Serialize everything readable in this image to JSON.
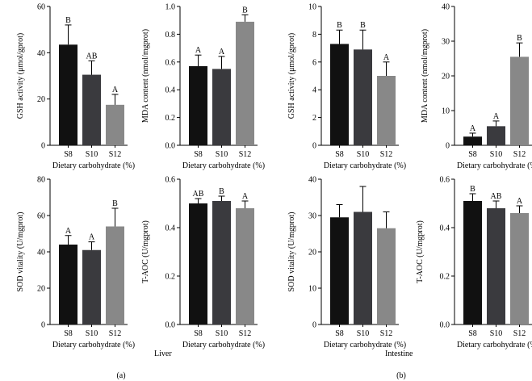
{
  "figure": {
    "group_labels": [
      "Liver",
      "Intestine"
    ],
    "panel_labels": [
      "(a)",
      "(b)"
    ],
    "bar_colors": [
      "#111111",
      "#3a3a3e",
      "#888888"
    ]
  },
  "chart_data": [
    {
      "type": "bar",
      "group": "Liver",
      "position": "top-left",
      "title": "",
      "xlabel": "Dietary carbohydrate (%)",
      "ylabel": "GSH activity (μmol/gprot)",
      "categories": [
        "S8",
        "S10",
        "S12"
      ],
      "values": [
        43.5,
        30.5,
        17.5
      ],
      "errors": [
        8.5,
        6.0,
        4.5
      ],
      "significance": [
        "B",
        "AB",
        "A"
      ],
      "ylim": [
        0,
        60
      ],
      "yticks": [
        0,
        20,
        40,
        60
      ],
      "tick_labels": [
        "0",
        "20",
        "40",
        "60"
      ]
    },
    {
      "type": "bar",
      "group": "Liver",
      "position": "top-right",
      "title": "",
      "xlabel": "Dietary carbohydrate (%)",
      "ylabel": "MDA content (nmol/mgprot)",
      "categories": [
        "S8",
        "S10",
        "S12"
      ],
      "values": [
        0.57,
        0.55,
        0.89
      ],
      "errors": [
        0.08,
        0.09,
        0.05
      ],
      "significance": [
        "A",
        "A",
        "B"
      ],
      "ylim": [
        0,
        1.0
      ],
      "yticks": [
        0,
        0.2,
        0.4,
        0.6,
        0.8,
        1.0
      ],
      "tick_labels": [
        "0.0",
        "0.2",
        "0.4",
        "0.6",
        "0.8",
        "1.0"
      ]
    },
    {
      "type": "bar",
      "group": "Liver",
      "position": "bottom-left",
      "title": "",
      "xlabel": "Dietary carbohydrate (%)",
      "ylabel": "SOD vitality (U/mgprot)",
      "categories": [
        "S8",
        "S10",
        "S12"
      ],
      "values": [
        44.0,
        41.0,
        54.0
      ],
      "errors": [
        5.0,
        4.5,
        10.0
      ],
      "significance": [
        "A",
        "A",
        "B"
      ],
      "ylim": [
        0,
        80
      ],
      "yticks": [
        0,
        20,
        40,
        60,
        80
      ],
      "tick_labels": [
        "0",
        "20",
        "40",
        "60",
        "80"
      ]
    },
    {
      "type": "bar",
      "group": "Liver",
      "position": "bottom-right",
      "title": "",
      "xlabel": "Dietary carbohydrate (%)",
      "ylabel": "T-AOC (U/mgprot)",
      "categories": [
        "S8",
        "S10",
        "S12"
      ],
      "values": [
        0.5,
        0.51,
        0.48
      ],
      "errors": [
        0.02,
        0.02,
        0.03
      ],
      "significance": [
        "AB",
        "B",
        "A"
      ],
      "ylim": [
        0,
        0.6
      ],
      "yticks": [
        0,
        0.2,
        0.4,
        0.6
      ],
      "tick_labels": [
        "0.0",
        "0.2",
        "0.4",
        "0.6"
      ]
    },
    {
      "type": "bar",
      "group": "Intestine",
      "position": "top-left",
      "title": "",
      "xlabel": "Dietary carbohydrate (%)",
      "ylabel": "GSH activity (μmol/gprot)",
      "categories": [
        "S8",
        "S10",
        "S12"
      ],
      "values": [
        7.3,
        6.9,
        5.0
      ],
      "errors": [
        1.0,
        1.4,
        1.0
      ],
      "significance": [
        "B",
        "B",
        "A"
      ],
      "ylim": [
        0,
        10
      ],
      "yticks": [
        0,
        2,
        4,
        6,
        8,
        10
      ],
      "tick_labels": [
        "0",
        "2",
        "4",
        "6",
        "8",
        "10"
      ]
    },
    {
      "type": "bar",
      "group": "Intestine",
      "position": "top-right",
      "title": "",
      "xlabel": "Dietary carbohydrate (%)",
      "ylabel": "MDA content (nmol/mgprot)",
      "categories": [
        "S8",
        "S10",
        "S12"
      ],
      "values": [
        2.5,
        5.5,
        25.5
      ],
      "errors": [
        1.0,
        1.5,
        4.0
      ],
      "significance": [
        "A",
        "A",
        "B"
      ],
      "ylim": [
        0,
        40
      ],
      "yticks": [
        0,
        10,
        20,
        30,
        40
      ],
      "tick_labels": [
        "0",
        "10",
        "20",
        "30",
        "40"
      ]
    },
    {
      "type": "bar",
      "group": "Intestine",
      "position": "bottom-left",
      "title": "",
      "xlabel": "Dietary carbohydrate (%)",
      "ylabel": "SOD vitality (U/mgprot)",
      "categories": [
        "S8",
        "S10",
        "S12"
      ],
      "values": [
        29.5,
        31.0,
        26.5
      ],
      "errors": [
        3.5,
        7.0,
        4.5
      ],
      "significance": [
        "",
        "",
        ""
      ],
      "ylim": [
        0,
        40
      ],
      "yticks": [
        0,
        10,
        20,
        30,
        40
      ],
      "tick_labels": [
        "0",
        "10",
        "20",
        "30",
        "40"
      ]
    },
    {
      "type": "bar",
      "group": "Intestine",
      "position": "bottom-right",
      "title": "",
      "xlabel": "Dietary carbohydrate (%)",
      "ylabel": "T-AOC (U/mgprot)",
      "categories": [
        "S8",
        "S10",
        "S12"
      ],
      "values": [
        0.51,
        0.48,
        0.46
      ],
      "errors": [
        0.03,
        0.03,
        0.03
      ],
      "significance": [
        "B",
        "AB",
        "A"
      ],
      "ylim": [
        0,
        0.6
      ],
      "yticks": [
        0,
        0.2,
        0.4,
        0.6
      ],
      "tick_labels": [
        "0.0",
        "0.2",
        "0.4",
        "0.6"
      ]
    }
  ]
}
